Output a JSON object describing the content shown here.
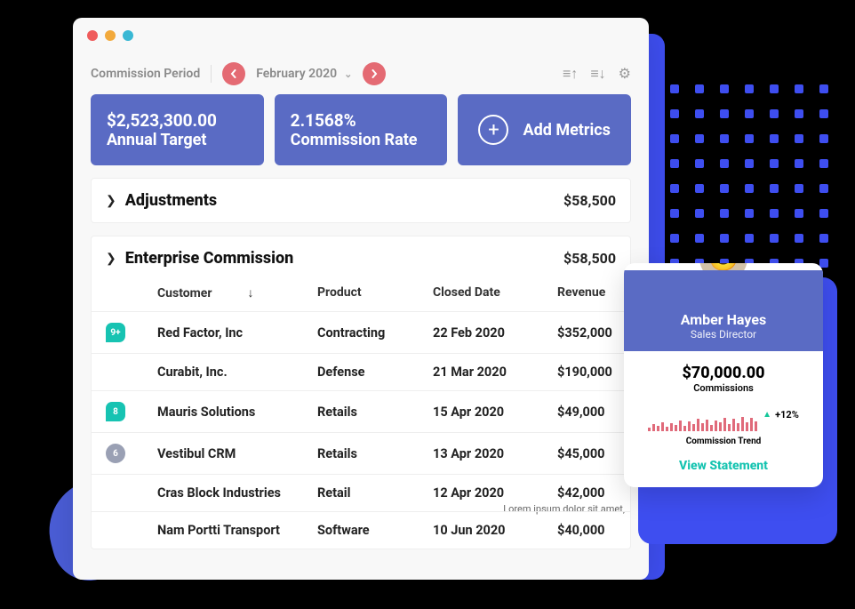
{
  "window": {
    "traffic_colors": [
      "#ef5b5b",
      "#f2a93b",
      "#39b8d4"
    ]
  },
  "toolbar": {
    "period_label": "Commission Period",
    "prev_color": "#e46a73",
    "next_color": "#e46a73",
    "month": "February 2020"
  },
  "metrics": {
    "tile_bg": "#5a6bc4",
    "tiles": [
      {
        "value": "$2,523,300.00",
        "label": "Annual Target"
      },
      {
        "value": "2.1568%",
        "label": "Commission Rate"
      }
    ],
    "add_label": "Add Metrics"
  },
  "adjustments": {
    "title": "Adjustments",
    "amount": "$58,500"
  },
  "enterprise": {
    "title": "Enterprise Commission",
    "amount": "$58,500",
    "columns": {
      "customer": "Customer",
      "product": "Product",
      "closed": "Closed Date",
      "revenue": "Revenue"
    },
    "rows": [
      {
        "badge": "9+",
        "badge_color": "#17c3b2",
        "badge_shape": "square",
        "customer": "Red Factor, Inc",
        "product": "Contracting",
        "closed": "22 Feb 2020",
        "revenue": "$352,000"
      },
      {
        "badge": "",
        "badge_color": "",
        "badge_shape": "",
        "customer": "Curabit, Inc.",
        "product": "Defense",
        "closed": "21 Mar 2020",
        "revenue": "$190,000"
      },
      {
        "badge": "8",
        "badge_color": "#17c3b2",
        "badge_shape": "square",
        "customer": "Mauris Solutions",
        "product": "Retails",
        "closed": "15 Apr 2020",
        "revenue": "$49,000"
      },
      {
        "badge": "6",
        "badge_color": "#9aa0b4",
        "badge_shape": "round",
        "customer": "Vestibul CRM",
        "product": "Retails",
        "closed": "13 Apr 2020",
        "revenue": "$45,000"
      },
      {
        "badge": "",
        "badge_color": "",
        "badge_shape": "",
        "customer": "Cras Block Industries",
        "product": "Retail",
        "closed": "12 Apr 2020",
        "revenue": "$42,000",
        "tooltip": "Lorem ipsum dolor sit amet,"
      },
      {
        "badge": "",
        "badge_color": "",
        "badge_shape": "",
        "customer": "Nam Portti Transport",
        "product": "Software",
        "closed": "10 Jun 2020",
        "revenue": "$40,000"
      }
    ]
  },
  "profile": {
    "header_bg": "#5a6bc4",
    "name": "Amber Hayes",
    "role": "Sales Director",
    "amount": "$70,000.00",
    "amount_label": "Commissions",
    "spark": {
      "bar_color": "#e06a7a",
      "heights": [
        4,
        8,
        6,
        10,
        5,
        9,
        7,
        12,
        6,
        11,
        8,
        14,
        9,
        13,
        7,
        12,
        10,
        15,
        8,
        14,
        9,
        16,
        10,
        15,
        11
      ]
    },
    "delta": "+12%",
    "trend_label": "Commission Trend",
    "cta": "View Statement"
  },
  "decor": {
    "dot_color": "#3e4ef0",
    "dot_count": 100
  }
}
